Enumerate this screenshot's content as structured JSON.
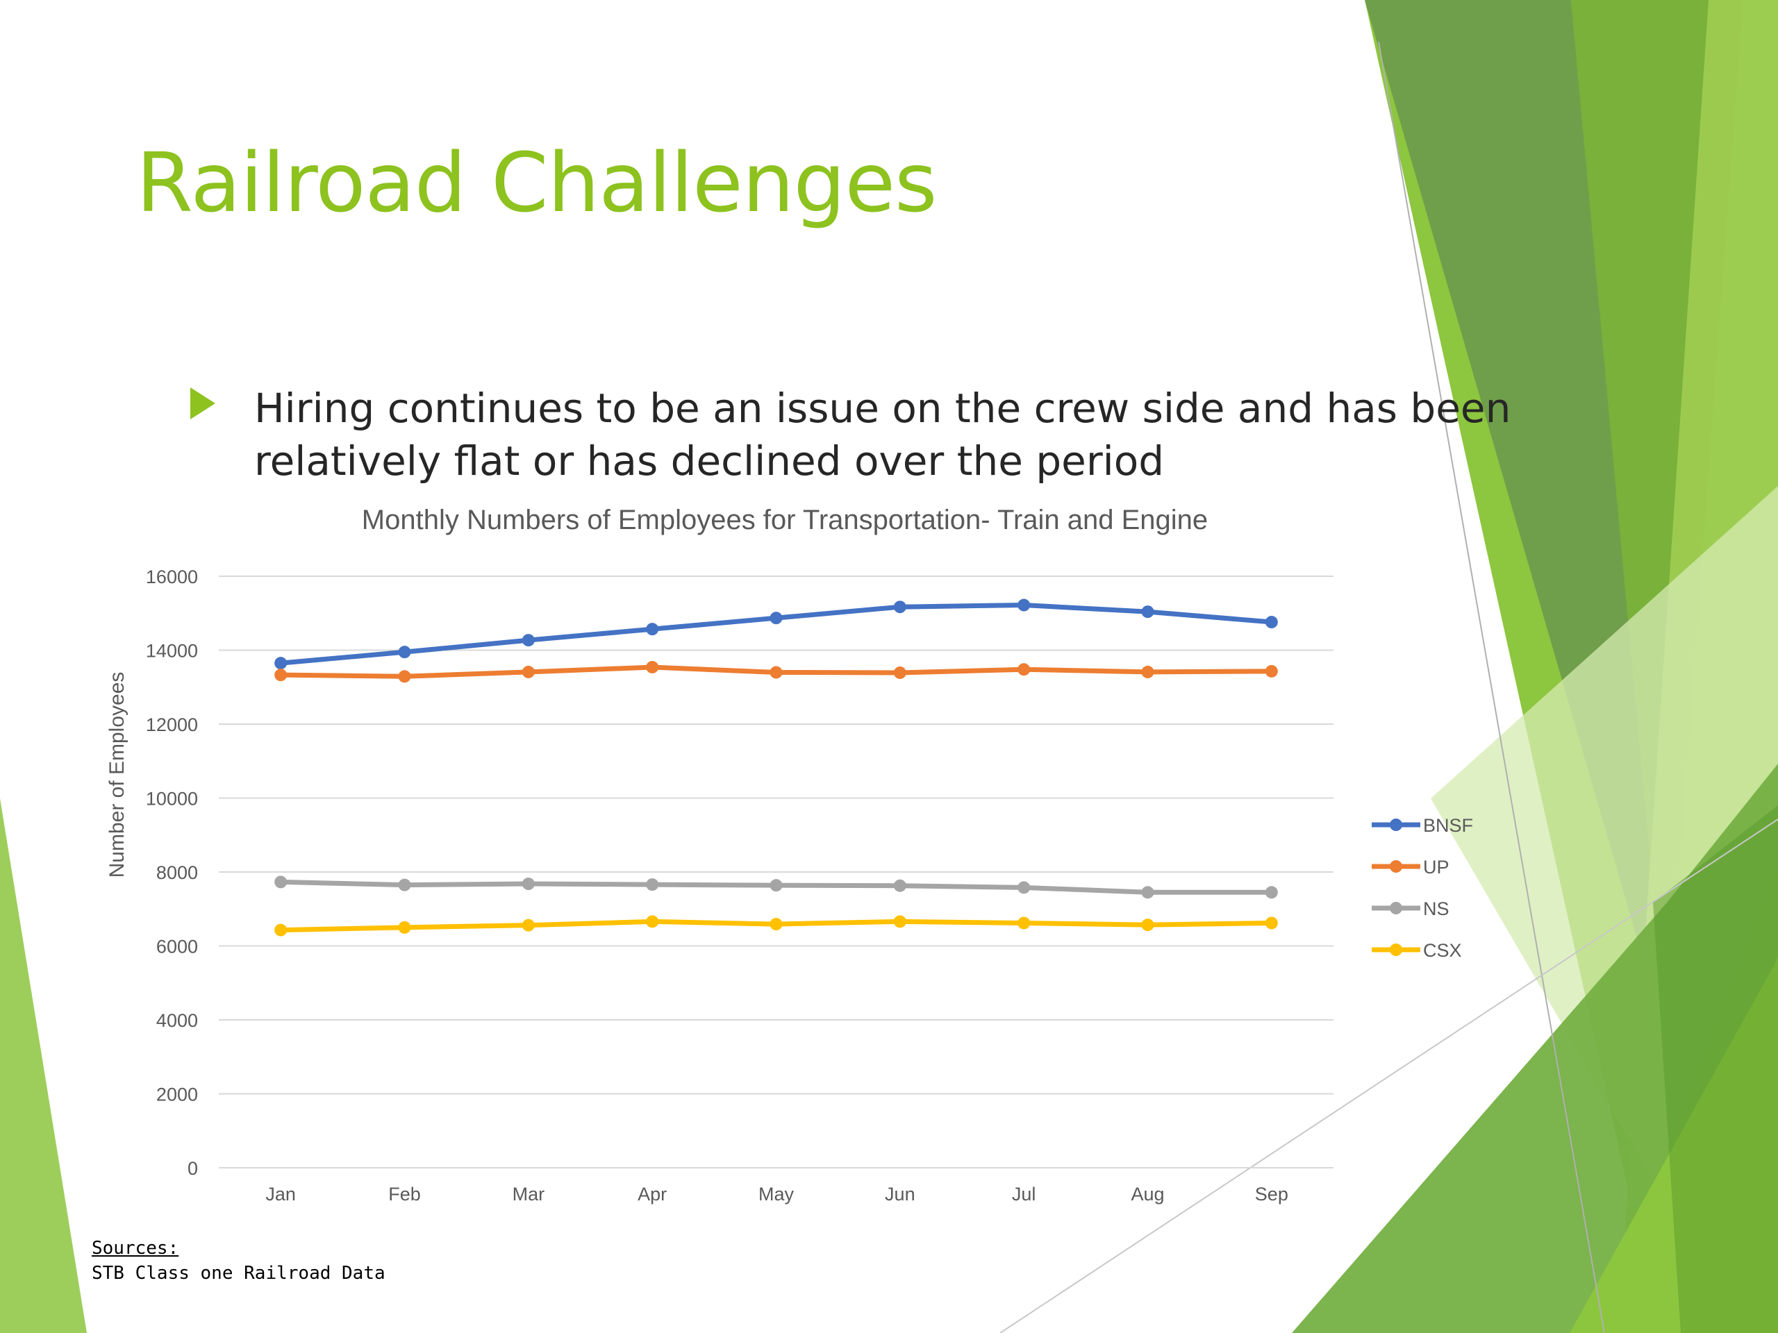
{
  "slide": {
    "title": "Railroad Challenges",
    "bullet": "Hiring continues to be an issue on the crew side and has been relatively flat or has declined over the period",
    "sources_label": "Sources:",
    "sources_text": "STB Class one Railroad Data"
  },
  "colors": {
    "accent": "#8dc21f",
    "text": "#262626",
    "BNSF": "#4472c4",
    "UP": "#ed7d31",
    "NS": "#a5a5a5",
    "CSX": "#ffc000"
  },
  "icons": {
    "bullet": "triangle-right-icon"
  },
  "chart_data": {
    "type": "line",
    "title": "Monthly Numbers of Employees for Transportation- Train and Engine",
    "xlabel": "",
    "ylabel": "Number of Employees",
    "categories": [
      "Jan",
      "Feb",
      "Mar",
      "Apr",
      "May",
      "Jun",
      "Jul",
      "Aug",
      "Sep"
    ],
    "ylim": [
      0,
      16000
    ],
    "yticks": [
      0,
      2000,
      4000,
      6000,
      8000,
      10000,
      12000,
      14000,
      16000
    ],
    "grid": true,
    "legend_position": "right",
    "series": [
      {
        "name": "BNSF",
        "color": "#4472c4",
        "values": [
          13650,
          13950,
          14270,
          14570,
          14870,
          15170,
          15220,
          15040,
          14760
        ]
      },
      {
        "name": "UP",
        "color": "#ed7d31",
        "values": [
          13330,
          13290,
          13410,
          13540,
          13400,
          13390,
          13480,
          13410,
          13430
        ]
      },
      {
        "name": "NS",
        "color": "#a5a5a5",
        "values": [
          7730,
          7650,
          7680,
          7660,
          7640,
          7630,
          7580,
          7450,
          7450
        ]
      },
      {
        "name": "CSX",
        "color": "#ffc000",
        "values": [
          6430,
          6500,
          6560,
          6660,
          6590,
          6660,
          6620,
          6570,
          6620
        ]
      }
    ]
  }
}
